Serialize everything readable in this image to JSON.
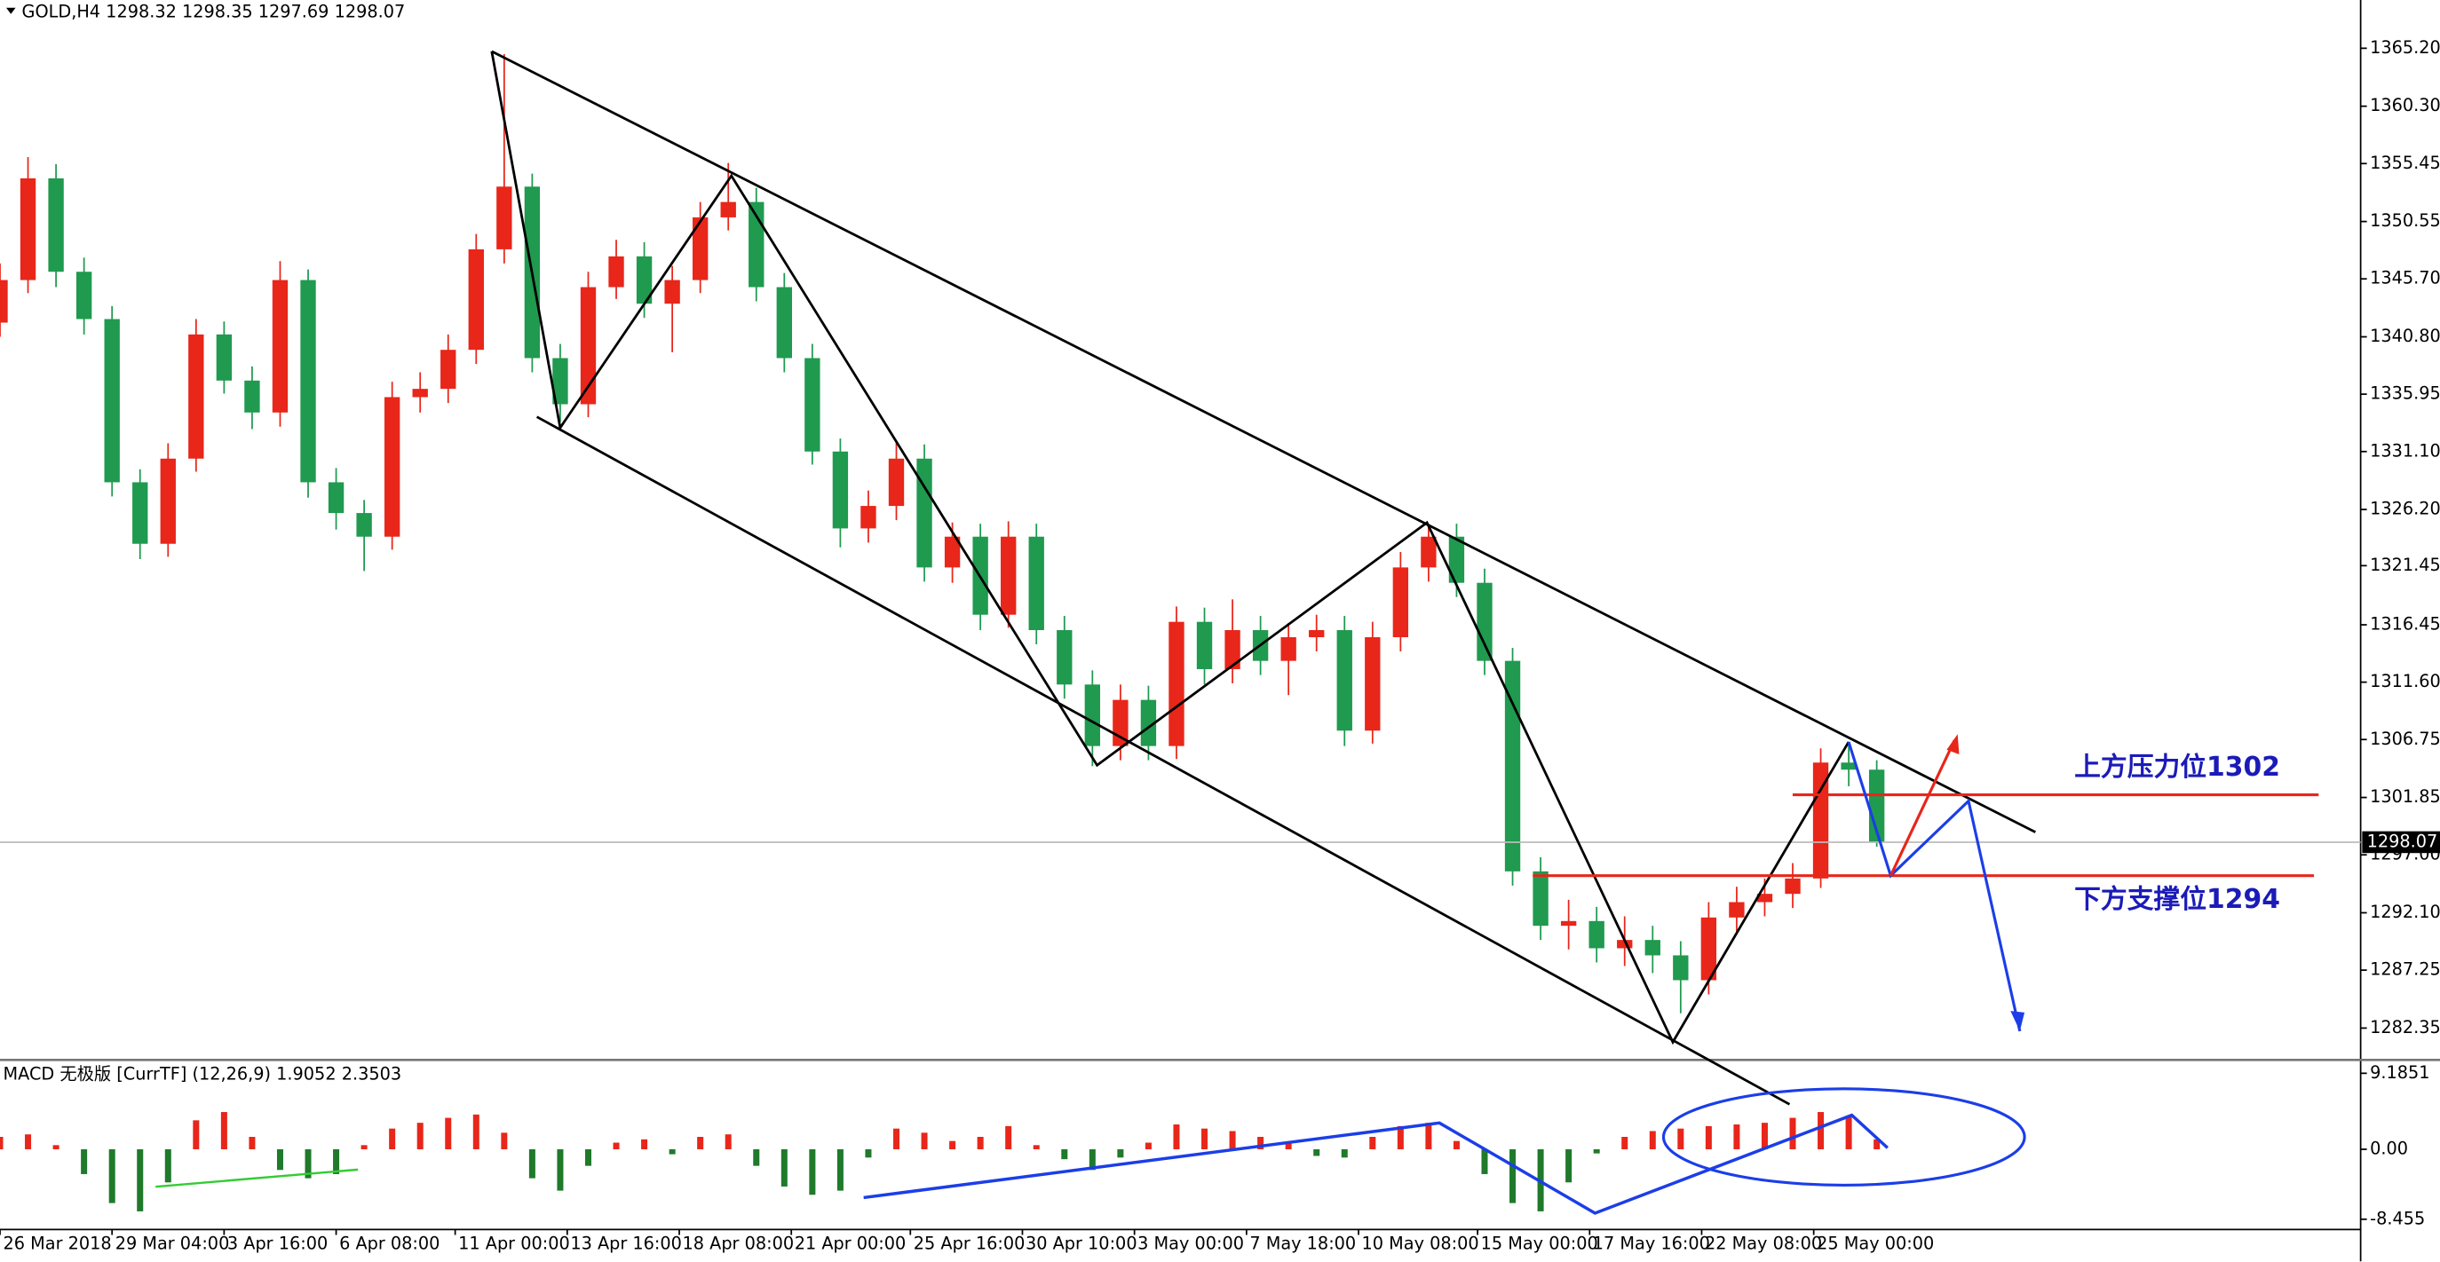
{
  "chart_data": [
    {
      "type": "candlestick",
      "title": "GOLD,H4  1298.32 1298.35 1297.69 1298.07",
      "up_color": "#e8261a",
      "down_color": "#1f9a4f",
      "x": [
        0,
        4,
        8,
        12,
        16,
        20,
        24,
        28,
        32,
        36,
        40,
        44,
        48,
        52,
        56,
        60,
        64,
        68,
        72,
        76,
        80,
        84,
        88,
        92,
        96,
        100,
        104,
        108,
        112,
        116,
        120,
        124,
        128,
        132,
        136,
        140,
        144,
        148,
        152,
        156,
        160,
        164,
        168,
        172,
        176,
        180,
        184,
        188,
        192,
        196,
        200,
        204,
        208,
        212,
        216,
        220,
        224,
        228,
        232,
        236,
        240,
        244,
        248,
        252,
        256,
        260,
        264,
        268
      ],
      "open": [
        1342.0,
        1345.6,
        1354.2,
        1346.3,
        1342.3,
        1328.5,
        1323.3,
        1330.5,
        1341.0,
        1337.1,
        1334.4,
        1345.6,
        1328.5,
        1325.9,
        1323.9,
        1335.7,
        1336.4,
        1339.7,
        1348.2,
        1353.5,
        1339.0,
        1335.1,
        1345.0,
        1347.6,
        1343.6,
        1345.6,
        1350.9,
        1352.2,
        1345.0,
        1339.0,
        1331.1,
        1324.6,
        1326.5,
        1330.5,
        1321.3,
        1323.9,
        1317.3,
        1323.9,
        1316.0,
        1311.4,
        1306.2,
        1310.1,
        1306.2,
        1316.7,
        1312.7,
        1316.0,
        1313.4,
        1315.4,
        1316.0,
        1307.5,
        1315.4,
        1321.3,
        1323.9,
        1320.0,
        1313.4,
        1295.6,
        1291.0,
        1291.4,
        1289.1,
        1289.8,
        1288.5,
        1286.4,
        1291.7,
        1293.0,
        1293.7,
        1295.0,
        1304.8,
        1304.2
      ],
      "high": [
        1347.0,
        1356.0,
        1355.4,
        1347.5,
        1343.4,
        1329.6,
        1331.8,
        1342.3,
        1342.1,
        1338.3,
        1347.2,
        1346.5,
        1329.7,
        1327.0,
        1337.0,
        1337.8,
        1341.0,
        1349.5,
        1364.7,
        1354.6,
        1340.2,
        1346.3,
        1349.0,
        1348.8,
        1346.8,
        1352.2,
        1355.5,
        1353.4,
        1346.2,
        1340.2,
        1332.2,
        1327.8,
        1331.9,
        1331.7,
        1325.1,
        1325.0,
        1325.2,
        1325.0,
        1317.2,
        1312.6,
        1311.4,
        1311.3,
        1318.0,
        1317.9,
        1318.6,
        1317.2,
        1316.6,
        1317.3,
        1317.2,
        1316.7,
        1322.6,
        1324.9,
        1325.0,
        1321.2,
        1314.5,
        1296.8,
        1293.2,
        1292.6,
        1291.8,
        1291.0,
        1289.7,
        1293.0,
        1294.3,
        1295.0,
        1296.3,
        1306.0,
        1306.4,
        1305.0
      ],
      "low": [
        1340.8,
        1344.5,
        1345.0,
        1341.0,
        1327.3,
        1322.0,
        1322.2,
        1329.4,
        1336.0,
        1333.0,
        1333.2,
        1327.2,
        1324.5,
        1321.0,
        1322.8,
        1334.4,
        1335.2,
        1338.5,
        1347.0,
        1337.8,
        1333.6,
        1334.0,
        1344.0,
        1342.4,
        1339.5,
        1344.5,
        1349.8,
        1343.8,
        1337.8,
        1330.0,
        1323.0,
        1323.4,
        1325.3,
        1320.1,
        1320.0,
        1316.0,
        1316.2,
        1314.8,
        1310.2,
        1304.5,
        1305.0,
        1305.0,
        1305.1,
        1311.4,
        1311.5,
        1312.2,
        1310.5,
        1314.2,
        1306.2,
        1306.4,
        1314.2,
        1320.1,
        1318.8,
        1312.2,
        1294.4,
        1289.8,
        1289.0,
        1287.9,
        1287.6,
        1287.0,
        1283.6,
        1285.2,
        1290.5,
        1291.8,
        1292.5,
        1294.2,
        1302.8,
        1297.69
      ],
      "close": [
        1345.6,
        1354.2,
        1346.3,
        1342.3,
        1328.5,
        1323.3,
        1330.5,
        1341.0,
        1337.1,
        1334.4,
        1345.6,
        1328.5,
        1325.9,
        1323.9,
        1335.7,
        1336.4,
        1339.7,
        1348.2,
        1353.5,
        1339.0,
        1335.1,
        1345.0,
        1347.6,
        1343.6,
        1345.6,
        1350.9,
        1352.2,
        1345.0,
        1339.0,
        1331.1,
        1324.6,
        1326.5,
        1330.5,
        1321.3,
        1323.9,
        1317.3,
        1323.9,
        1316.0,
        1311.4,
        1306.2,
        1310.1,
        1306.2,
        1316.7,
        1312.7,
        1316.0,
        1313.4,
        1315.4,
        1316.0,
        1307.5,
        1315.4,
        1321.3,
        1323.9,
        1320.0,
        1313.4,
        1295.6,
        1291.0,
        1291.4,
        1289.1,
        1289.8,
        1288.5,
        1286.4,
        1291.7,
        1293.0,
        1293.7,
        1295.0,
        1304.8,
        1304.2,
        1298.07
      ],
      "xlim": [
        0,
        337.1
      ],
      "xticks": [
        {
          "value": 0,
          "label": "26 Mar 2018"
        },
        {
          "value": 16,
          "label": "29 Mar 04:00"
        },
        {
          "value": 32,
          "label": "3 Apr 16:00"
        },
        {
          "value": 48,
          "label": "6 Apr 08:00"
        },
        {
          "value": 65,
          "label": "11 Apr 00:00"
        },
        {
          "value": 81,
          "label": "13 Apr 16:00"
        },
        {
          "value": 97,
          "label": "18 Apr 08:00"
        },
        {
          "value": 113,
          "label": "21 Apr 00:00"
        },
        {
          "value": 130,
          "label": "25 Apr 16:00"
        },
        {
          "value": 146,
          "label": "30 Apr 10:00"
        },
        {
          "value": 162,
          "label": "3 May 00:00"
        },
        {
          "value": 178,
          "label": "7 May 18:00"
        },
        {
          "value": 194,
          "label": "10 May 08:00"
        },
        {
          "value": 211,
          "label": "15 May 00:00"
        },
        {
          "value": 227,
          "label": "17 May 16:00"
        },
        {
          "value": 243,
          "label": "22 May 08:00"
        },
        {
          "value": 259,
          "label": "25 May 00:00"
        }
      ],
      "ylim": [
        1279.72,
        1369.28
      ],
      "yticks": [
        {
          "value": 1365.2,
          "label": "1365.20"
        },
        {
          "value": 1360.3,
          "label": "1360.30"
        },
        1355.45,
        1350.55,
        {
          "value": 1345.7,
          "label": "1345.70"
        },
        {
          "value": 1340.8,
          "label": "1340.80"
        },
        1335.95,
        {
          "value": 1331.1,
          "label": "1331.10"
        },
        {
          "value": 1326.2,
          "label": "1326.20"
        },
        1321.45,
        1316.45,
        {
          "value": 1311.6,
          "label": "1311.60"
        },
        1306.75,
        1301.85,
        {
          "value": 1297,
          "label": "1297.00"
        },
        {
          "value": 1292.1,
          "label": "1292.10"
        },
        1287.25,
        1282.35
      ],
      "annotations": [
        "上方压力位1302",
        "下方支撑位1294"
      ],
      "grid": false
    },
    {
      "type": "bar",
      "title": "MACD 无极版 [CurrTF] (12,26,9) 1.9052 2.3503",
      "up_color": "#e8261a",
      "down_color": "#1f7a2a",
      "x": [
        0,
        4,
        8,
        12,
        16,
        20,
        24,
        28,
        32,
        36,
        40,
        44,
        48,
        52,
        56,
        60,
        64,
        68,
        72,
        76,
        80,
        84,
        88,
        92,
        96,
        100,
        104,
        108,
        112,
        116,
        120,
        124,
        128,
        132,
        136,
        140,
        144,
        148,
        152,
        156,
        160,
        164,
        168,
        172,
        176,
        180,
        184,
        188,
        192,
        196,
        200,
        204,
        208,
        212,
        216,
        220,
        224,
        228,
        232,
        236,
        240,
        244,
        248,
        252,
        256,
        260,
        264,
        268
      ],
      "values": [
        1.5,
        1.8,
        0.5,
        -3,
        -6.5,
        -7.5,
        -4,
        3.5,
        4.5,
        1.5,
        -2.5,
        -3.5,
        -3,
        0.5,
        2.5,
        3.2,
        3.8,
        4.2,
        2,
        -3.5,
        -5,
        -2,
        0.8,
        1.2,
        -0.6,
        1.5,
        1.8,
        -2,
        -4.5,
        -5.5,
        -5,
        -1,
        2.5,
        2,
        1,
        1.5,
        2.8,
        0.5,
        -1.2,
        -2.5,
        -1,
        0.8,
        3,
        2.5,
        2.2,
        1.5,
        0.8,
        -0.8,
        -1,
        1.5,
        2.8,
        3.2,
        1,
        -3,
        -6.5,
        -7.5,
        -4,
        -0.5,
        1.5,
        2.2,
        2.5,
        2.8,
        3,
        3.2,
        3.8,
        4.5,
        4,
        1.2
      ],
      "xlim": [
        0,
        337.1
      ],
      "ylim": [
        -9.6,
        10.7
      ],
      "yticks": [
        9.1851,
        {
          "value": 0,
          "label": "0.00"
        },
        -8.455
      ],
      "grid": false
    }
  ]
}
